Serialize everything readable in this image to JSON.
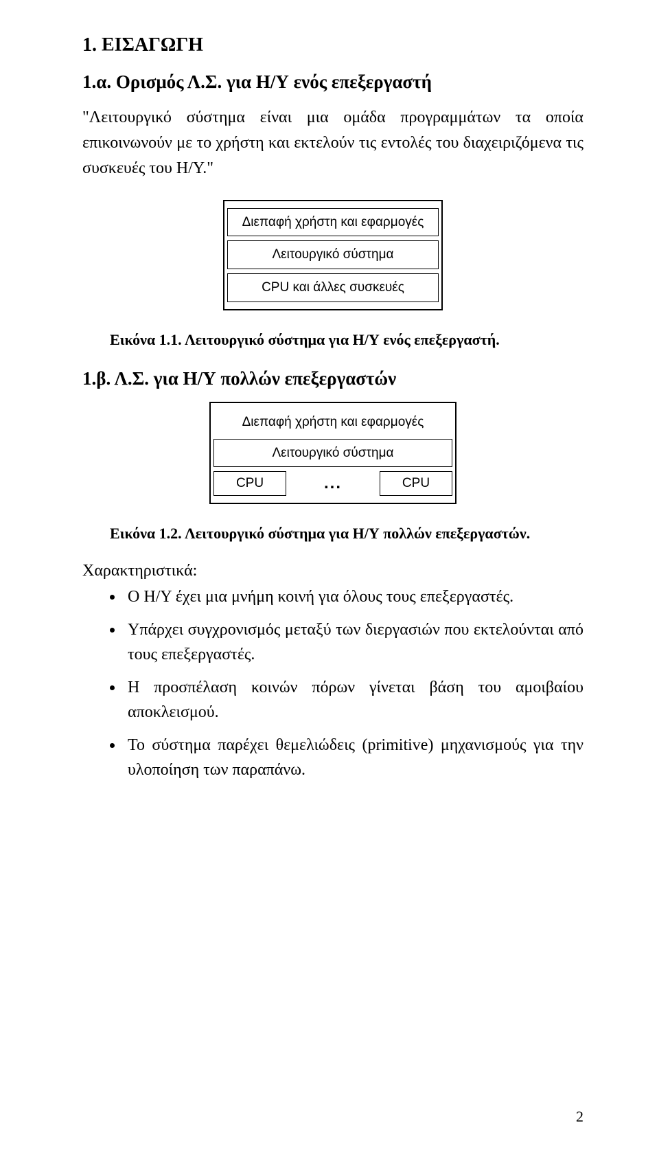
{
  "heading_main": "1. ΕΙΣΑΓΩΓΗ",
  "section_a": {
    "title": "1.α. Ορισμός Λ.Σ. για Η/Υ ενός επεξεργαστή",
    "paragraph": "\"Λειτουργικό σύστημα είναι μια ομάδα προγραμμάτων τα οποία επικοινωνούν με το χρήστη και εκτελούν τις εντολές του διαχειριζόμενα τις συσκευές του Η/Υ.\"",
    "diagram": {
      "rows": [
        "Διεπαφή χρήστη και εφαρμογές",
        "Λειτουργικό σύστημα",
        "CPU και άλλες συσκευές"
      ]
    },
    "caption": "Εικόνα 1.1. Λειτουργικό σύστημα για Η/Υ ενός επεξεργαστή."
  },
  "section_b": {
    "title": "1.β. Λ.Σ. για Η/Υ πολλών επεξεργαστών",
    "diagram": {
      "top_rows": [
        "Διεπαφή χρήστη και εφαρμογές",
        "Λειτουργικό σύστημα"
      ],
      "cpu_left": "CPU",
      "ellipsis": "...",
      "cpu_right": "CPU"
    },
    "caption": "Εικόνα 1.2. Λειτουργικό σύστημα για Η/Υ πολλών επεξεργαστών.",
    "char_label": "Χαρακτηριστικά:",
    "bullets": [
      "Ο Η/Υ έχει μια μνήμη κοινή για όλους τους επεξεργαστές.",
      "Υπάρχει συγχρονισμός μεταξύ των διεργασιών που εκτελούνται από τους επεξεργαστές.",
      "Η προσπέλαση κοινών πόρων γίνεται βάση του αμοιβαίου αποκλεισμού.",
      "Το σύστημα παρέχει θεμελιώδεις (primitive) μηχανισμούς για την υλοποίηση των παραπάνω."
    ]
  },
  "page_number": "2"
}
